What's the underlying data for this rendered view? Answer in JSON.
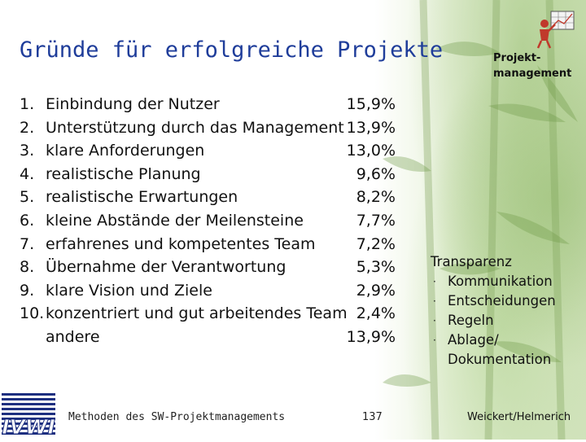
{
  "slide": {
    "title": "Gründe für erfolgreiche Projekte",
    "header_label": "Projekt-\nmanagement",
    "items": [
      {
        "num": "1.",
        "text": "Einbindung der Nutzer",
        "pct": "15,9%"
      },
      {
        "num": "2.",
        "text": "Unterstützung durch das Management",
        "pct": "13,9%"
      },
      {
        "num": "3.",
        "text": "klare Anforderungen",
        "pct": "13,0%"
      },
      {
        "num": "4.",
        "text": "realistische Planung",
        "pct": "9,6%"
      },
      {
        "num": "5.",
        "text": "realistische Erwartungen",
        "pct": "8,2%"
      },
      {
        "num": "6.",
        "text": "kleine Abstände der Meilensteine",
        "pct": "7,7%"
      },
      {
        "num": "7.",
        "text": "erfahrenes und kompetentes Team",
        "pct": "7,2%"
      },
      {
        "num": "8.",
        "text": "Übernahme der Verantwortung",
        "pct": "5,3%"
      },
      {
        "num": "9.",
        "text": "klare Vision und Ziele",
        "pct": "2,9%"
      },
      {
        "num": "10.",
        "text": "konzentriert und gut arbeitendes Team",
        "pct": "2,4%"
      },
      {
        "num": "",
        "text": "andere",
        "pct": "13,9%"
      }
    ],
    "side_box": {
      "heading": "Transparenz",
      "bullet": "·",
      "bullets": [
        "Kommunikation",
        "Entscheidungen",
        "Regeln",
        "Ablage/ Dokumentation"
      ]
    },
    "footer": {
      "left": "Methoden des SW-Projektmanagements",
      "page": "137",
      "right": "Weickert/Helmerich"
    },
    "icons": [
      "bamboo-background",
      "project-management-logo-icon",
      "institute-logo-icon"
    ],
    "colors": {
      "title": "#1f3d9a",
      "logo": "#1d2f80"
    }
  }
}
